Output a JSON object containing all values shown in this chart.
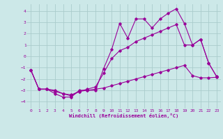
{
  "title": "",
  "xlabel": "Windchill (Refroidissement éolien,°C)",
  "bg_color": "#cce8e8",
  "grid_color": "#aacccc",
  "line_color": "#990099",
  "x_ticks": [
    0,
    1,
    2,
    3,
    4,
    5,
    6,
    7,
    8,
    9,
    10,
    11,
    12,
    13,
    14,
    15,
    16,
    17,
    18,
    19,
    20,
    21,
    22,
    23
  ],
  "y_ticks": [
    -4,
    -3,
    -2,
    -1,
    0,
    1,
    2,
    3,
    4
  ],
  "xlim": [
    -0.5,
    23.5
  ],
  "ylim": [
    -4.6,
    4.6
  ],
  "series1_x": [
    0,
    1,
    2,
    3,
    4,
    5,
    6,
    7,
    8,
    9,
    10,
    11,
    12,
    13,
    14,
    15,
    16,
    17,
    18,
    19,
    20,
    21,
    22,
    23
  ],
  "series1_y": [
    -1.2,
    -2.9,
    -2.9,
    -3.3,
    -3.6,
    -3.6,
    -3.0,
    -3.0,
    -3.0,
    -1.1,
    0.6,
    2.9,
    1.6,
    3.3,
    3.3,
    2.5,
    3.3,
    3.8,
    4.2,
    2.9,
    1.0,
    1.5,
    -0.6,
    -1.8
  ],
  "series2_x": [
    0,
    1,
    2,
    3,
    4,
    5,
    6,
    7,
    8,
    9,
    10,
    11,
    12,
    13,
    14,
    15,
    16,
    17,
    18,
    19,
    20,
    21,
    22,
    23
  ],
  "series2_y": [
    -1.2,
    -2.9,
    -2.9,
    -3.1,
    -3.3,
    -3.4,
    -3.1,
    -3.0,
    -2.9,
    -2.8,
    -2.6,
    -2.4,
    -2.2,
    -2.0,
    -1.8,
    -1.6,
    -1.4,
    -1.2,
    -1.0,
    -0.8,
    -1.7,
    -1.9,
    -1.9,
    -1.85
  ],
  "series3_x": [
    0,
    1,
    2,
    3,
    4,
    5,
    6,
    7,
    8,
    9,
    10,
    11,
    12,
    13,
    14,
    15,
    16,
    17,
    18,
    19,
    20,
    21,
    22,
    23
  ],
  "series3_y": [
    -1.2,
    -2.9,
    -2.9,
    -3.0,
    -3.3,
    -3.5,
    -3.1,
    -2.9,
    -2.7,
    -1.5,
    -0.2,
    0.5,
    0.8,
    1.3,
    1.6,
    1.9,
    2.2,
    2.5,
    2.8,
    1.0,
    1.0,
    1.5,
    -0.6,
    -1.8
  ]
}
